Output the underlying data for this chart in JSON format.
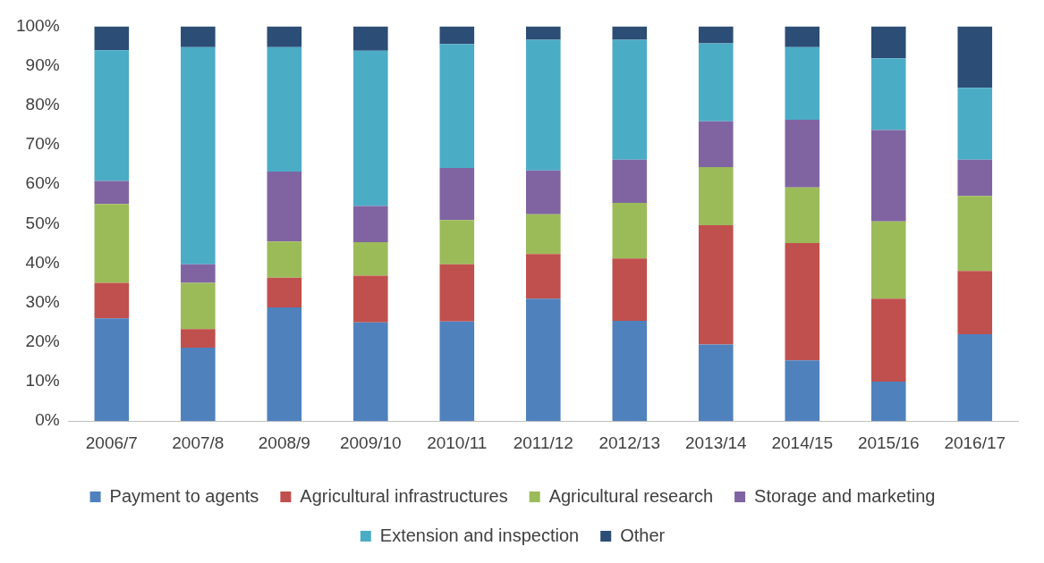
{
  "chart_data": {
    "type": "bar",
    "stacked": true,
    "categories": [
      "2006/7",
      "2007/8",
      "2008/9",
      "2009/10",
      "2010/11",
      "2011/12",
      "2012/13",
      "2013/14",
      "2014/15",
      "2015/16",
      "2016/17"
    ],
    "series": [
      {
        "name": "Payment to agents",
        "color": "#4f81bd",
        "values": [
          26,
          18.6,
          28.8,
          25,
          25.2,
          31,
          25.4,
          19.4,
          15.4,
          10,
          22
        ]
      },
      {
        "name": "Agricultural infrastructures",
        "color": "#c0504d",
        "values": [
          9,
          4.7,
          7.5,
          11.8,
          14.5,
          11.3,
          15.8,
          30.2,
          29.7,
          21,
          16
        ]
      },
      {
        "name": "Agricultural research",
        "color": "#9bbb59",
        "values": [
          20,
          11.7,
          9.2,
          8.5,
          11.2,
          10.1,
          14.1,
          14.7,
          14.1,
          19.6,
          19
        ]
      },
      {
        "name": "Storage and marketing",
        "color": "#8064a2",
        "values": [
          5.8,
          4.7,
          17.7,
          9.2,
          13.2,
          11.1,
          10.9,
          11.6,
          17.1,
          23.1,
          9.2
        ]
      },
      {
        "name": "Extension and inspection",
        "color": "#4bacc6",
        "values": [
          33.1,
          55,
          31.5,
          39.3,
          31.4,
          33.1,
          30.4,
          19.8,
          18.4,
          18.2,
          18.2
        ]
      },
      {
        "name": "Other",
        "color": "#2c4d75",
        "values": [
          6.1,
          5.3,
          5.3,
          6.2,
          4.5,
          3.4,
          3.4,
          4.3,
          5.3,
          8.1,
          15.6
        ]
      }
    ],
    "ylim": [
      0,
      100
    ],
    "yticks": [
      {
        "value": 0,
        "label": "0%"
      },
      {
        "value": 10,
        "label": "10%"
      },
      {
        "value": 20,
        "label": "20%"
      },
      {
        "value": 30,
        "label": "30%"
      },
      {
        "value": 40,
        "label": "40%"
      },
      {
        "value": 50,
        "label": "50%"
      },
      {
        "value": 60,
        "label": "60%"
      },
      {
        "value": 70,
        "label": "70%"
      },
      {
        "value": 80,
        "label": "80%"
      },
      {
        "value": 90,
        "label": "90%"
      },
      {
        "value": 100,
        "label": "100%"
      }
    ],
    "grid": false,
    "legend": "bottom"
  }
}
